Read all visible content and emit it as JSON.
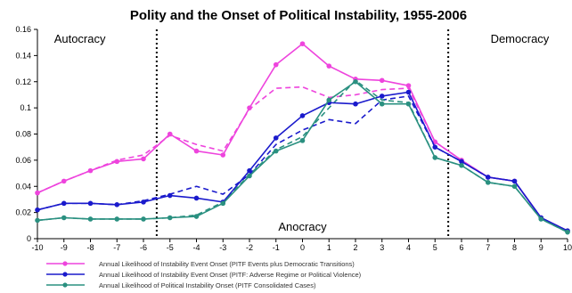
{
  "chart_data": {
    "type": "line",
    "title": "Polity and the Onset of Political Instability, 1955-2006",
    "x": [
      -10,
      -9,
      -8,
      -7,
      -6,
      -5,
      -4,
      -3,
      -2,
      -1,
      0,
      1,
      2,
      3,
      4,
      5,
      6,
      7,
      8,
      9,
      10
    ],
    "x_tick_labels": [
      "-10",
      "-9",
      "-8",
      "-7",
      "-6",
      "-5",
      "-4",
      "-3",
      "-2",
      "-1",
      "0",
      "1",
      "2",
      "3",
      "4",
      "5",
      "6",
      "7",
      "8",
      "9",
      "10"
    ],
    "y_ticks": [
      0,
      0.02,
      0.04,
      0.06,
      0.08,
      0.1,
      0.12,
      0.14,
      0.16
    ],
    "y_tick_labels": [
      "0",
      "0.02",
      "0.04",
      "0.06",
      "0.08",
      "0.1",
      "0.12",
      "0.14",
      "0.16"
    ],
    "xlim": [
      -10,
      10
    ],
    "ylim": [
      0,
      0.16
    ],
    "grid": false,
    "legend_position": "bottom",
    "regions": [
      {
        "label": "Autocracy",
        "boundary": -5.5
      },
      {
        "label": "Anocracy"
      },
      {
        "label": "Democracy",
        "boundary": 5.5
      }
    ],
    "series": [
      {
        "name": "Annual Likelihood of Instability Event Onset (PITF Events plus Democratic Transitions)",
        "color": "#ee44dd",
        "style": "solid",
        "values": [
          0.035,
          0.044,
          0.052,
          0.059,
          0.061,
          0.08,
          0.067,
          0.064,
          0.1,
          0.133,
          0.149,
          0.132,
          0.122,
          0.121,
          0.117,
          0.074,
          0.06,
          0.047,
          0.044,
          0.016,
          0.006
        ]
      },
      {
        "name": "",
        "color": "#ee44dd",
        "style": "dashed",
        "values": [
          0.035,
          0.044,
          0.052,
          0.06,
          0.064,
          0.079,
          0.072,
          0.067,
          0.099,
          0.115,
          0.116,
          0.108,
          0.11,
          0.114,
          0.115,
          0.074,
          0.06,
          0.047,
          0.044,
          0.016,
          0.006
        ]
      },
      {
        "name": "Annual Likelihood of Instability Event Onset (PITF: Adverse Regime or Political Violence)",
        "color": "#1a1acc",
        "style": "solid",
        "values": [
          0.022,
          0.027,
          0.027,
          0.026,
          0.028,
          0.033,
          0.031,
          0.028,
          0.052,
          0.077,
          0.094,
          0.104,
          0.103,
          0.109,
          0.112,
          0.07,
          0.059,
          0.047,
          0.044,
          0.016,
          0.006
        ]
      },
      {
        "name": "",
        "color": "#1a1acc",
        "style": "dashed",
        "values": [
          0.022,
          0.027,
          0.027,
          0.026,
          0.029,
          0.034,
          0.04,
          0.034,
          0.049,
          0.072,
          0.083,
          0.091,
          0.088,
          0.106,
          0.109,
          0.07,
          0.059,
          0.047,
          0.044,
          0.016,
          0.006
        ]
      },
      {
        "name": "Annual Likelihood of Political Instability Onset (PITF Consolidated Cases)",
        "color": "#2a9080",
        "style": "solid",
        "values": [
          0.014,
          0.016,
          0.015,
          0.015,
          0.015,
          0.016,
          0.017,
          0.027,
          0.048,
          0.067,
          0.075,
          0.106,
          0.12,
          0.103,
          0.103,
          0.062,
          0.056,
          0.043,
          0.04,
          0.015,
          0.005
        ]
      },
      {
        "name": "",
        "color": "#2a9080",
        "style": "dashed",
        "values": [
          0.014,
          0.016,
          0.015,
          0.015,
          0.015,
          0.016,
          0.018,
          0.028,
          0.049,
          0.068,
          0.078,
          0.1,
          0.121,
          0.106,
          0.104,
          0.062,
          0.056,
          0.043,
          0.04,
          0.015,
          0.005
        ]
      }
    ]
  }
}
